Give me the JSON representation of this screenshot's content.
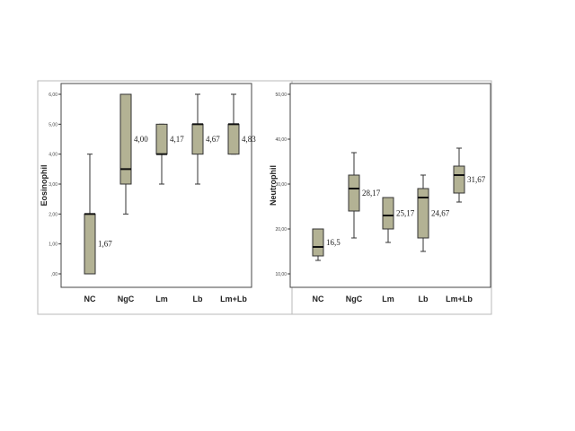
{
  "chart_data": [
    {
      "type": "boxplot",
      "ylabel": "Eosinophil",
      "xlabel": "",
      "ylim": [
        0,
        6
      ],
      "yticks": [
        ",00",
        "1,00",
        "2,00",
        "3,00",
        "4,00",
        "5,00",
        "6,00"
      ],
      "categories": [
        "NC",
        "NgC",
        "Lm",
        "Lb",
        "Lm+Lb"
      ],
      "boxes": [
        {
          "min": 0,
          "q1": 0,
          "median": 2,
          "q3": 2,
          "max": 4,
          "label": "1,67"
        },
        {
          "min": 2,
          "q1": 3,
          "median": 3.5,
          "q3": 6,
          "max": 6,
          "label": "4,00"
        },
        {
          "min": 3,
          "q1": 4,
          "median": 4,
          "q3": 5,
          "max": 5,
          "label": "4,17"
        },
        {
          "min": 3,
          "q1": 4,
          "median": 5,
          "q3": 5,
          "max": 6,
          "label": "4,67"
        },
        {
          "min": 4,
          "q1": 4,
          "median": 5,
          "q3": 5,
          "max": 6,
          "label": "4,83"
        }
      ],
      "box_color": "#b3b294",
      "grid": false
    },
    {
      "type": "boxplot",
      "ylabel": "Neutrophil",
      "xlabel": "",
      "ylim": [
        10,
        50
      ],
      "yticks": [
        "10,00",
        "20,00",
        "30,00",
        "40,00",
        "50,00"
      ],
      "categories": [
        "NC",
        "NgC",
        "Lm",
        "Lb",
        "Lm+Lb"
      ],
      "boxes": [
        {
          "min": 13,
          "q1": 14,
          "median": 16,
          "q3": 20,
          "max": 20,
          "label": "16,5"
        },
        {
          "min": 18,
          "q1": 24,
          "median": 29,
          "q3": 32,
          "max": 37,
          "label": "28,17"
        },
        {
          "min": 17,
          "q1": 20,
          "median": 23,
          "q3": 27,
          "max": 27,
          "label": "25,17"
        },
        {
          "min": 15,
          "q1": 18,
          "median": 27,
          "q3": 29,
          "max": 32,
          "label": "24,67"
        },
        {
          "min": 26,
          "q1": 28,
          "median": 32,
          "q3": 34,
          "max": 38,
          "label": "31,67"
        }
      ],
      "box_color": "#b3b294",
      "grid": false
    }
  ]
}
